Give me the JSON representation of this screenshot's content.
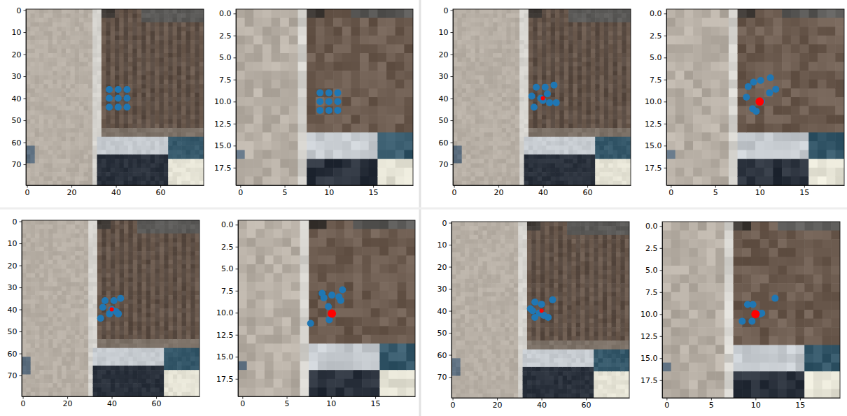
{
  "chart_data": [
    {
      "type": "scatter",
      "xlim": [
        -0.5,
        79.5
      ],
      "ylim": [
        79.5,
        -0.5
      ],
      "xticks": [
        0,
        20,
        40,
        60
      ],
      "yticks": [
        0,
        10,
        20,
        30,
        40,
        50,
        60,
        70
      ],
      "series": [
        {
          "color": "#1f77b4",
          "marker": "o",
          "x": [
            37,
            41,
            45,
            37,
            41,
            45,
            37,
            41,
            45
          ],
          "values": [
            36,
            36,
            36,
            40,
            40,
            40,
            44,
            44,
            44
          ]
        }
      ]
    },
    {
      "type": "scatter",
      "xlim": [
        -0.5,
        19.5
      ],
      "ylim": [
        19.5,
        -0.5
      ],
      "xticks": [
        0,
        5,
        10,
        15
      ],
      "yticks": [
        {
          "value": 0,
          "label": "0.0"
        },
        {
          "value": 2.5,
          "label": "2.5"
        },
        {
          "value": 5,
          "label": "5.0"
        },
        {
          "value": 7.5,
          "label": "7.5"
        },
        {
          "value": 10,
          "label": "10.0"
        },
        {
          "value": 12.5,
          "label": "12.5"
        },
        {
          "value": 15,
          "label": "15.0"
        },
        {
          "value": 17.5,
          "label": "17.5"
        }
      ],
      "series": [
        {
          "color": "#1f77b4",
          "marker": "o",
          "x": [
            9,
            10,
            11,
            9,
            10,
            11,
            9,
            10,
            11
          ],
          "values": [
            9,
            9,
            9,
            10,
            10,
            10,
            11,
            11,
            11
          ]
        }
      ]
    },
    {
      "type": "scatter",
      "xlim": [
        -0.5,
        79.5
      ],
      "ylim": [
        79.5,
        -0.5
      ],
      "xticks": [
        0,
        20,
        40,
        60
      ],
      "yticks": [
        0,
        10,
        20,
        30,
        40,
        50,
        60,
        70
      ],
      "series": [
        {
          "color": "#1f77b4",
          "marker": "o",
          "x": [
            37,
            41,
            45,
            35,
            39,
            42,
            40,
            43,
            46,
            36
          ],
          "values": [
            35,
            35,
            34,
            39,
            40,
            38,
            41,
            42,
            42,
            44
          ]
        },
        {
          "color": "#ff0000",
          "marker": "o",
          "x": [
            40
          ],
          "values": [
            40
          ]
        }
      ]
    },
    {
      "type": "scatter",
      "xlim": [
        -0.5,
        19.5
      ],
      "ylim": [
        19.5,
        -0.5
      ],
      "xticks": [
        0,
        5,
        10,
        15
      ],
      "yticks": [
        {
          "value": 0,
          "label": "0.0"
        },
        {
          "value": 2.5,
          "label": "2.5"
        },
        {
          "value": 5,
          "label": "5.0"
        },
        {
          "value": 7.5,
          "label": "7.5"
        },
        {
          "value": 10,
          "label": "10.0"
        },
        {
          "value": 12.5,
          "label": "12.5"
        },
        {
          "value": 15,
          "label": "15.0"
        },
        {
          "value": 17.5,
          "label": "17.5"
        }
      ],
      "series": [
        {
          "color": "#1f77b4",
          "marker": "o",
          "x": [
            8.7,
            9.3,
            10.1,
            11.2,
            11.8,
            11.1,
            8.5,
            9.2,
            9.6,
            10.2
          ],
          "values": [
            8.3,
            7.8,
            7.6,
            7.3,
            8.6,
            9.0,
            9.5,
            10.8,
            11.1,
            10.0
          ]
        },
        {
          "color": "#ff0000",
          "marker": "o",
          "x": [
            10
          ],
          "values": [
            10
          ]
        }
      ]
    },
    {
      "type": "scatter",
      "xlim": [
        -0.5,
        79.5
      ],
      "ylim": [
        79.5,
        -0.5
      ],
      "xticks": [
        0,
        20,
        40,
        60
      ],
      "yticks": [
        0,
        10,
        20,
        30,
        40,
        50,
        60,
        70
      ],
      "series": [
        {
          "color": "#1f77b4",
          "marker": "o",
          "x": [
            37,
            41,
            44,
            36,
            40,
            42,
            43,
            35,
            39
          ],
          "values": [
            36,
            36,
            35,
            39,
            40,
            41,
            42,
            44,
            42
          ]
        },
        {
          "color": "#ff0000",
          "marker": "o",
          "x": [
            40
          ],
          "values": [
            40
          ]
        }
      ]
    },
    {
      "type": "scatter",
      "xlim": [
        -0.5,
        19.5
      ],
      "ylim": [
        19.5,
        -0.5
      ],
      "xticks": [
        0,
        5,
        10,
        15
      ],
      "yticks": [
        {
          "value": 0,
          "label": "0.0"
        },
        {
          "value": 2.5,
          "label": "2.5"
        },
        {
          "value": 5,
          "label": "5.0"
        },
        {
          "value": 7.5,
          "label": "7.5"
        },
        {
          "value": 10,
          "label": "10.0"
        },
        {
          "value": 12.5,
          "label": "12.5"
        },
        {
          "value": 15,
          "label": "15.0"
        },
        {
          "value": 17.5,
          "label": "17.5"
        }
      ],
      "series": [
        {
          "color": "#1f77b4",
          "marker": "o",
          "x": [
            9.0,
            9.2,
            10.1,
            11.3,
            10.9,
            11.1,
            7.7,
            9.7,
            9.8
          ],
          "values": [
            7.8,
            8.3,
            8.0,
            7.4,
            8.2,
            8.6,
            11.2,
            9.3,
            10.8
          ]
        },
        {
          "color": "#ff0000",
          "marker": "o",
          "x": [
            10.1
          ],
          "values": [
            10.1
          ]
        }
      ]
    },
    {
      "type": "scatter",
      "xlim": [
        -0.5,
        79.5
      ],
      "ylim": [
        79.5,
        -0.5
      ],
      "xticks": [
        0,
        20,
        40,
        60
      ],
      "yticks": [
        0,
        10,
        20,
        30,
        40,
        50,
        60,
        70
      ],
      "series": [
        {
          "color": "#1f77b4",
          "marker": "o",
          "x": [
            37,
            40,
            45,
            36,
            39,
            41,
            43,
            37,
            35
          ],
          "values": [
            36,
            37,
            35,
            40,
            41,
            42,
            43,
            43,
            39
          ]
        },
        {
          "color": "#ff0000",
          "marker": "o",
          "x": [
            40
          ],
          "values": [
            40
          ]
        }
      ]
    },
    {
      "type": "scatter",
      "xlim": [
        -0.5,
        19.5
      ],
      "ylim": [
        19.5,
        -0.5
      ],
      "xticks": [
        0,
        5,
        10,
        15
      ],
      "yticks": [
        {
          "value": 0,
          "label": "0.0"
        },
        {
          "value": 2.5,
          "label": "2.5"
        },
        {
          "value": 5,
          "label": "5.0"
        },
        {
          "value": 7.5,
          "label": "7.5"
        },
        {
          "value": 10,
          "label": "10.0"
        },
        {
          "value": 12.5,
          "label": "12.5"
        },
        {
          "value": 15,
          "label": "15.0"
        },
        {
          "value": 17.5,
          "label": "17.5"
        }
      ],
      "series": [
        {
          "color": "#1f77b4",
          "marker": "o",
          "x": [
            9.1,
            9.7,
            12.2,
            10.2,
            10.5,
            10.7,
            8.5,
            9.6
          ],
          "values": [
            8.9,
            8.9,
            8.2,
            9.9,
            10.0,
            9.9,
            10.8,
            10.8
          ]
        },
        {
          "color": "#ff0000",
          "marker": "o",
          "x": [
            10
          ],
          "values": [
            10
          ]
        }
      ]
    }
  ]
}
